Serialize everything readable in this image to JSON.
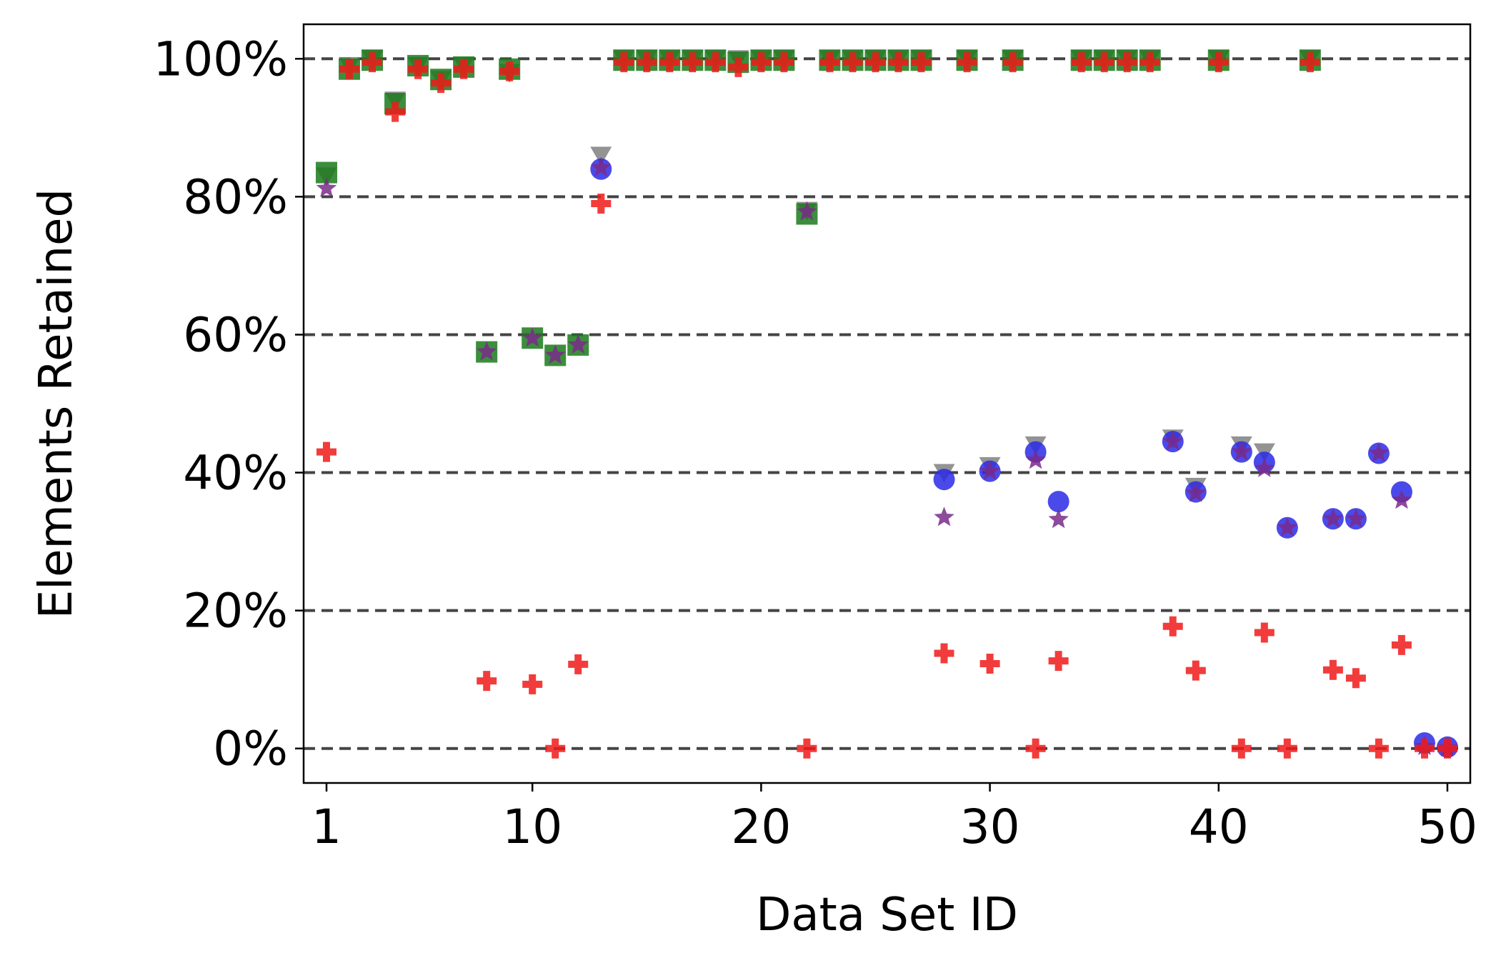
{
  "chart_data": {
    "type": "scatter",
    "title": "",
    "xlabel": "Data Set ID",
    "ylabel": "Elements Retained",
    "xlim": [
      0,
      51
    ],
    "ylim": [
      -5,
      105
    ],
    "x_ticks": [
      1,
      10,
      20,
      30,
      40,
      50
    ],
    "y_ticks": [
      0,
      20,
      40,
      60,
      80,
      100
    ],
    "y_tick_labels": [
      "0%",
      "20%",
      "40%",
      "60%",
      "80%",
      "100%"
    ],
    "grid": "horizontal dashed",
    "legend": "none",
    "series": [
      {
        "marker": "triangle-down",
        "color": "#808080",
        "points": [
          [
            1,
            83
          ],
          [
            2,
            99
          ],
          [
            3,
            100
          ],
          [
            4,
            94
          ],
          [
            5,
            99
          ],
          [
            6,
            97
          ],
          [
            7,
            99
          ],
          [
            9,
            98
          ],
          [
            13,
            86
          ],
          [
            14,
            100
          ],
          [
            15,
            100
          ],
          [
            16,
            100
          ],
          [
            17,
            100
          ],
          [
            18,
            100
          ],
          [
            19,
            100
          ],
          [
            20,
            100
          ],
          [
            21,
            100
          ],
          [
            22,
            78
          ],
          [
            23,
            100
          ],
          [
            24,
            100
          ],
          [
            25,
            100
          ],
          [
            26,
            100
          ],
          [
            27,
            100
          ],
          [
            29,
            100
          ],
          [
            31,
            100
          ],
          [
            34,
            100
          ],
          [
            35,
            100
          ],
          [
            36,
            100
          ],
          [
            37,
            100
          ],
          [
            40,
            100
          ],
          [
            44,
            100
          ],
          [
            28,
            40
          ],
          [
            30,
            41
          ],
          [
            32,
            44
          ],
          [
            38,
            45
          ],
          [
            39,
            38
          ],
          [
            41,
            44
          ],
          [
            42,
            43
          ]
        ]
      },
      {
        "marker": "square",
        "color": "#1a7a1a",
        "points": [
          [
            1,
            83.5
          ],
          [
            2,
            98.5
          ],
          [
            3,
            99.8
          ],
          [
            4,
            93.5
          ],
          [
            5,
            99
          ],
          [
            6,
            97
          ],
          [
            7,
            98.8
          ],
          [
            8,
            57.5
          ],
          [
            9,
            98.5
          ],
          [
            10,
            59.5
          ],
          [
            11,
            57
          ],
          [
            12,
            58.5
          ],
          [
            14,
            99.8
          ],
          [
            15,
            99.8
          ],
          [
            16,
            99.8
          ],
          [
            17,
            99.8
          ],
          [
            18,
            99.8
          ],
          [
            19,
            99.5
          ],
          [
            20,
            99.8
          ],
          [
            21,
            99.8
          ],
          [
            22,
            77.5
          ],
          [
            23,
            99.8
          ],
          [
            24,
            99.8
          ],
          [
            25,
            99.8
          ],
          [
            26,
            99.8
          ],
          [
            27,
            99.8
          ],
          [
            29,
            99.8
          ],
          [
            31,
            99.8
          ],
          [
            34,
            99.8
          ],
          [
            35,
            99.8
          ],
          [
            36,
            99.8
          ],
          [
            37,
            99.8
          ],
          [
            40,
            99.8
          ],
          [
            44,
            99.8
          ]
        ]
      },
      {
        "marker": "circle",
        "color": "#2a2ae8",
        "points": [
          [
            13,
            84
          ],
          [
            28,
            39
          ],
          [
            30,
            40.2
          ],
          [
            32,
            43
          ],
          [
            33,
            35.8
          ],
          [
            38,
            44.5
          ],
          [
            39,
            37.2
          ],
          [
            41,
            43
          ],
          [
            42,
            41.5
          ],
          [
            43,
            32
          ],
          [
            45,
            33.3
          ],
          [
            46,
            33.3
          ],
          [
            47,
            42.8
          ],
          [
            48,
            37.2
          ],
          [
            49,
            0.8
          ],
          [
            50,
            0.2
          ]
        ]
      },
      {
        "marker": "star",
        "color": "#7a2a8a",
        "points": [
          [
            1,
            81.2
          ],
          [
            8,
            57.5
          ],
          [
            10,
            59.5
          ],
          [
            11,
            57
          ],
          [
            12,
            58.5
          ],
          [
            13,
            84.2
          ],
          [
            22,
            77.8
          ],
          [
            28,
            33.5
          ],
          [
            30,
            40.2
          ],
          [
            32,
            41.8
          ],
          [
            33,
            33.2
          ],
          [
            38,
            44.5
          ],
          [
            39,
            37
          ],
          [
            41,
            43
          ],
          [
            42,
            40.6
          ],
          [
            43,
            32
          ],
          [
            45,
            33.3
          ],
          [
            46,
            33.3
          ],
          [
            47,
            42.8
          ],
          [
            48,
            36
          ],
          [
            49,
            0.3
          ],
          [
            50,
            0.1
          ]
        ]
      },
      {
        "marker": "plus",
        "color": "#f01a1a",
        "points": [
          [
            1,
            43
          ],
          [
            2,
            98.5
          ],
          [
            3,
            99.5
          ],
          [
            4,
            92.3
          ],
          [
            5,
            98.5
          ],
          [
            6,
            96.5
          ],
          [
            7,
            98.5
          ],
          [
            8,
            9.8
          ],
          [
            9,
            98.2
          ],
          [
            10,
            9.3
          ],
          [
            11,
            0
          ],
          [
            12,
            12.2
          ],
          [
            13,
            79
          ],
          [
            14,
            99.5
          ],
          [
            15,
            99.5
          ],
          [
            16,
            99.5
          ],
          [
            17,
            99.5
          ],
          [
            18,
            99.5
          ],
          [
            19,
            98.8
          ],
          [
            20,
            99.5
          ],
          [
            21,
            99.5
          ],
          [
            22,
            0
          ],
          [
            23,
            99.5
          ],
          [
            24,
            99.5
          ],
          [
            25,
            99.5
          ],
          [
            26,
            99.5
          ],
          [
            27,
            99.5
          ],
          [
            28,
            13.8
          ],
          [
            29,
            99.5
          ],
          [
            30,
            12.3
          ],
          [
            31,
            99.5
          ],
          [
            32,
            0
          ],
          [
            33,
            12.7
          ],
          [
            34,
            99.5
          ],
          [
            35,
            99.5
          ],
          [
            36,
            99.5
          ],
          [
            37,
            99.5
          ],
          [
            38,
            17.7
          ],
          [
            39,
            11.3
          ],
          [
            40,
            99.5
          ],
          [
            41,
            0
          ],
          [
            42,
            16.8
          ],
          [
            43,
            0
          ],
          [
            44,
            99.5
          ],
          [
            45,
            11.4
          ],
          [
            46,
            10.2
          ],
          [
            47,
            0
          ],
          [
            48,
            15
          ],
          [
            49,
            0
          ],
          [
            50,
            0
          ]
        ]
      }
    ]
  }
}
